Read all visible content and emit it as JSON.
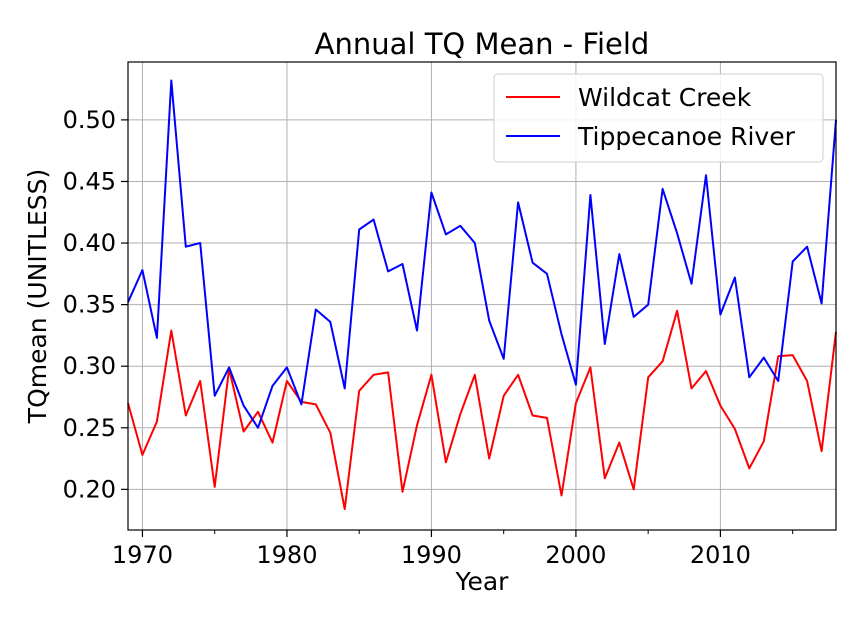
{
  "chart_data": {
    "type": "line",
    "title": "Annual TQ Mean - Field",
    "xlabel": "Year",
    "ylabel": "TQmean (UNITLESS)",
    "xlim": [
      1969,
      2018
    ],
    "ylim": [
      0.167,
      0.547
    ],
    "xticks": [
      1970,
      1980,
      1990,
      2000,
      2010
    ],
    "yticks": [
      0.2,
      0.25,
      0.3,
      0.35,
      0.4,
      0.45,
      0.5
    ],
    "ytick_labels": [
      "0.20",
      "0.25",
      "0.30",
      "0.35",
      "0.40",
      "0.45",
      "0.50"
    ],
    "grid": true,
    "legend_position": "top-right",
    "x": [
      1969,
      1970,
      1971,
      1972,
      1973,
      1974,
      1975,
      1976,
      1977,
      1978,
      1979,
      1980,
      1981,
      1982,
      1983,
      1984,
      1985,
      1986,
      1987,
      1988,
      1989,
      1990,
      1991,
      1992,
      1993,
      1994,
      1995,
      1996,
      1997,
      1998,
      1999,
      2000,
      2001,
      2002,
      2003,
      2004,
      2005,
      2006,
      2007,
      2008,
      2009,
      2010,
      2011,
      2012,
      2013,
      2014,
      2015,
      2016,
      2017,
      2018
    ],
    "series": [
      {
        "name": "Wildcat Creek",
        "color": "#ff0000",
        "values": [
          0.27,
          0.228,
          0.255,
          0.329,
          0.26,
          0.288,
          0.202,
          0.298,
          0.247,
          0.263,
          0.238,
          0.288,
          0.271,
          0.269,
          0.246,
          0.184,
          0.28,
          0.293,
          0.295,
          0.198,
          0.252,
          0.293,
          0.222,
          0.261,
          0.293,
          0.225,
          0.276,
          0.293,
          0.26,
          0.258,
          0.195,
          0.27,
          0.299,
          0.209,
          0.238,
          0.2,
          0.291,
          0.304,
          0.345,
          0.282,
          0.296,
          0.268,
          0.249,
          0.217,
          0.239,
          0.308,
          0.309,
          0.288,
          0.231,
          0.328
        ]
      },
      {
        "name": "Tippecanoe River",
        "color": "#0000ff",
        "values": [
          0.352,
          0.378,
          0.323,
          0.532,
          0.397,
          0.4,
          0.276,
          0.299,
          0.268,
          0.25,
          0.284,
          0.299,
          0.269,
          0.346,
          0.336,
          0.282,
          0.411,
          0.419,
          0.377,
          0.383,
          0.329,
          0.441,
          0.407,
          0.414,
          0.4,
          0.337,
          0.306,
          0.433,
          0.384,
          0.375,
          0.326,
          0.285,
          0.439,
          0.318,
          0.391,
          0.34,
          0.35,
          0.444,
          0.408,
          0.367,
          0.455,
          0.342,
          0.372,
          0.291,
          0.307,
          0.288,
          0.385,
          0.397,
          0.351,
          0.5
        ]
      }
    ]
  }
}
